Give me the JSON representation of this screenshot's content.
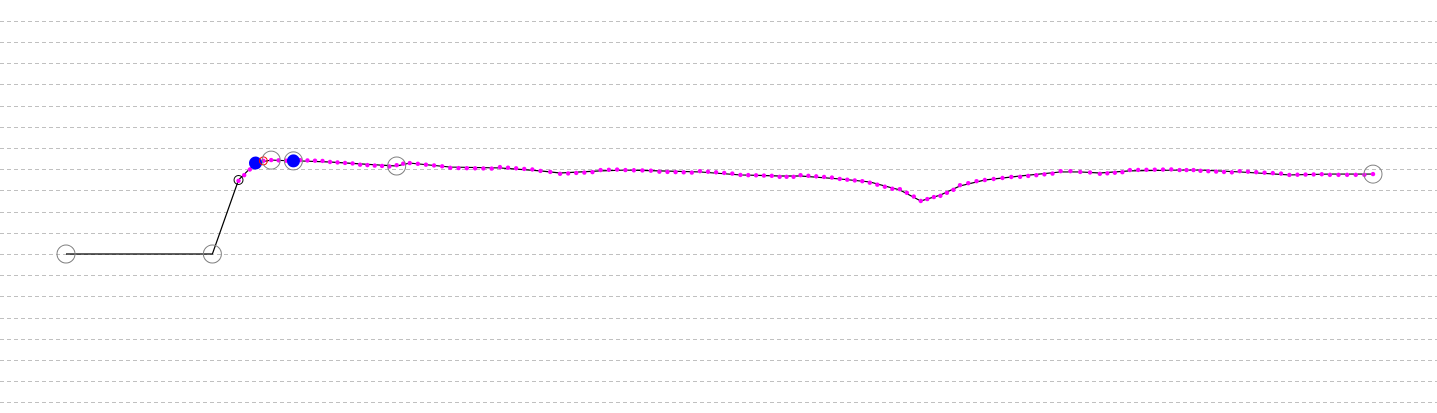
{
  "chart_data": {
    "type": "line",
    "title": "",
    "xlabel": "",
    "ylabel": "",
    "xlim": [
      0,
      100
    ],
    "ylim": [
      -7,
      11
    ],
    "grid": {
      "horizontal": true,
      "vertical": false,
      "style": "dashed"
    },
    "colors": {
      "line": "#000000",
      "samples": "#ff00ff",
      "selected": "#0000ff",
      "marker_ring": "#808080",
      "grid": "#c0c0c0",
      "highlight_ring": "#ff0000"
    },
    "series": [
      {
        "points": [
          [
            0,
            0
          ],
          [
            11.2,
            0
          ],
          [
            13.2,
            3.49
          ],
          [
            14.5,
            4.29
          ],
          [
            15.7,
            4.43
          ],
          [
            17.4,
            4.39
          ],
          [
            17.9,
            4.39
          ],
          [
            20.2,
            4.34
          ],
          [
            22.5,
            4.25
          ],
          [
            25.3,
            4.15
          ],
          [
            26.3,
            4.29
          ],
          [
            29.4,
            4.1
          ],
          [
            33.2,
            4.06
          ],
          [
            36.3,
            3.92
          ],
          [
            37.8,
            3.82
          ],
          [
            40.9,
            3.92
          ],
          [
            42.8,
            3.96
          ],
          [
            45.4,
            3.92
          ],
          [
            48.5,
            3.87
          ],
          [
            51.6,
            3.73
          ],
          [
            54.6,
            3.68
          ],
          [
            56.2,
            3.68
          ],
          [
            59.2,
            3.54
          ],
          [
            61.5,
            3.4
          ],
          [
            63.8,
            3.02
          ],
          [
            65.4,
            2.5
          ],
          [
            66.9,
            2.78
          ],
          [
            68.4,
            3.21
          ],
          [
            70.3,
            3.49
          ],
          [
            73.0,
            3.68
          ],
          [
            76.1,
            3.87
          ],
          [
            77.6,
            3.87
          ],
          [
            79.1,
            3.82
          ],
          [
            81.4,
            3.92
          ],
          [
            85.2,
            3.96
          ],
          [
            86.8,
            3.96
          ],
          [
            89.8,
            3.87
          ],
          [
            93.6,
            3.73
          ],
          [
            96.7,
            3.77
          ],
          [
            100,
            3.77
          ]
        ]
      }
    ],
    "key_markers": [
      {
        "kind": "ring",
        "x": 0,
        "y": 0
      },
      {
        "kind": "ring",
        "x": 11.2,
        "y": 0
      },
      {
        "kind": "small-ring",
        "x": 13.2,
        "y": 3.49
      },
      {
        "kind": "selected",
        "x": 14.5,
        "y": 4.29
      },
      {
        "kind": "red-ring",
        "x": 15.1,
        "y": 4.39
      },
      {
        "kind": "ring",
        "x": 15.7,
        "y": 4.43
      },
      {
        "kind": "ring",
        "x": 17.4,
        "y": 4.39
      },
      {
        "kind": "selected",
        "x": 17.4,
        "y": 4.39
      },
      {
        "kind": "ring",
        "x": 25.3,
        "y": 4.15
      },
      {
        "kind": "ring",
        "x": 100,
        "y": 3.77
      }
    ]
  }
}
